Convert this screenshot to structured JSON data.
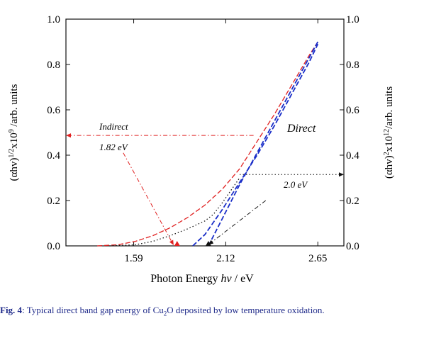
{
  "chart_data": {
    "type": "line",
    "xlabel": {
      "prefix": "Photon Energy ",
      "var": "hv",
      "suffix": " / eV"
    },
    "ylabel_left": {
      "pre": "(αhv)",
      "sup1": "1/2",
      "mid": "x10",
      "sup2": "9",
      "post": " /arb. units"
    },
    "ylabel_right": {
      "pre": "(αhv)",
      "sup1": "2",
      "mid": "x10",
      "sup2": "12",
      "post": "/arb. units"
    },
    "xlim": [
      1.2,
      2.8
    ],
    "ylim": [
      0,
      1.0
    ],
    "x_ticks": [
      1.59,
      2.12,
      2.65
    ],
    "x_tick_labels": [
      "1.59",
      "2.12",
      "2.65"
    ],
    "y_ticks": [
      0,
      0.2,
      0.4,
      0.6,
      0.8,
      1.0
    ],
    "y_tick_labels_left": [
      "0.0",
      "0.2",
      "0.4",
      "0.6",
      "0.8",
      "1.0"
    ],
    "y_tick_labels_right": [
      "0.0",
      "0.2",
      "0.4",
      "0.6",
      "0.8",
      "1.0"
    ],
    "series": [
      {
        "axis": "left",
        "color": "#e02020",
        "style": "dash",
        "x": [
          1.38,
          1.5,
          1.6,
          1.7,
          1.8,
          1.9,
          2.0,
          2.1,
          2.2,
          2.3,
          2.4,
          2.5,
          2.6,
          2.65
        ],
        "y": [
          0,
          0.005,
          0.02,
          0.045,
          0.08,
          0.125,
          0.18,
          0.25,
          0.34,
          0.46,
          0.58,
          0.71,
          0.84,
          0.9
        ]
      },
      {
        "axis": "left",
        "color": "#1a2ec8",
        "style": "dash",
        "x": [
          1.93,
          2.0,
          2.1,
          2.2,
          2.3,
          2.4,
          2.5,
          2.6,
          2.65
        ],
        "y": [
          0,
          0.05,
          0.16,
          0.28,
          0.4,
          0.53,
          0.67,
          0.81,
          0.89
        ]
      },
      {
        "axis": "right",
        "color": "#111111",
        "style": "dot",
        "x": [
          1.45,
          1.6,
          1.7,
          1.8,
          1.9,
          2.0,
          2.05,
          2.1,
          2.2
        ],
        "y": [
          0,
          0.005,
          0.02,
          0.045,
          0.075,
          0.11,
          0.14,
          0.19,
          0.3
        ]
      },
      {
        "axis": "right",
        "color": "#1a2ec8",
        "style": "dash",
        "x": [
          2.02,
          2.1,
          2.2,
          2.3,
          2.4,
          2.5,
          2.6,
          2.65
        ],
        "y": [
          0,
          0.12,
          0.27,
          0.41,
          0.55,
          0.69,
          0.83,
          0.9
        ]
      }
    ],
    "annotations": {
      "indirect_label": "Indirect",
      "indirect_value": "1.82 eV",
      "direct_label": "Direct",
      "direct_value": "2.0 eV"
    },
    "arrows": [
      {
        "from": [
          2.28,
          0.487
        ],
        "to": [
          1.2,
          0.487
        ],
        "color": "#e02020",
        "style": "dashdot",
        "head": "end"
      },
      {
        "from": [
          2.2,
          0.315
        ],
        "to": [
          2.8,
          0.315
        ],
        "color": "#111111",
        "style": "dot",
        "head": "end"
      },
      {
        "from": [
          1.53,
          0.41
        ],
        "to": [
          1.82,
          0.003
        ],
        "color": "#e02020",
        "style": "dashdot",
        "head": "end"
      },
      {
        "from": [
          2.35,
          0.2
        ],
        "to": [
          2.02,
          0.005
        ],
        "color": "#111111",
        "style": "dashdot",
        "head": "end"
      }
    ],
    "markers": [
      {
        "x": 1.84,
        "y": 0,
        "color": "#e02020"
      },
      {
        "x": 2.02,
        "y": 0,
        "color": "#111111"
      }
    ],
    "grid": false
  },
  "caption": {
    "label": "Fig. 4",
    "text_before": ": Typical  direct band gap energy  of Cu",
    "sub": "2",
    "text_after": "O deposited by low temperature  oxidation."
  }
}
